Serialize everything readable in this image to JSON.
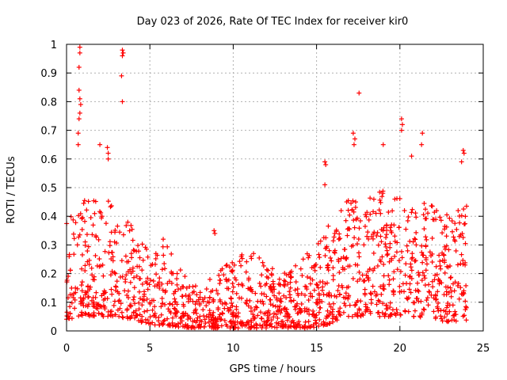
{
  "chart_data": {
    "type": "scatter",
    "title": "Day 023 of 2026, Rate Of TEC Index for receiver kir0",
    "xlabel": "GPS time / hours",
    "ylabel": "ROTI / TECUs",
    "xlim": [
      0,
      25
    ],
    "ylim": [
      0,
      1
    ],
    "x_ticks": [
      "0",
      "5",
      "10",
      "15",
      "20",
      "25"
    ],
    "y_ticks": [
      "0",
      "0.1",
      "0.2",
      "0.3",
      "0.4",
      "0.5",
      "0.6",
      "0.7",
      "0.8",
      "0.9",
      "1"
    ],
    "grid": true,
    "marker": "plus",
    "color": "#ff0000",
    "notable_points": [
      {
        "x": 0.8,
        "y": 0.99
      },
      {
        "x": 0.8,
        "y": 0.97
      },
      {
        "x": 0.75,
        "y": 0.92
      },
      {
        "x": 0.75,
        "y": 0.84
      },
      {
        "x": 0.8,
        "y": 0.81
      },
      {
        "x": 0.85,
        "y": 0.79
      },
      {
        "x": 0.8,
        "y": 0.76
      },
      {
        "x": 0.75,
        "y": 0.74
      },
      {
        "x": 0.7,
        "y": 0.69
      },
      {
        "x": 0.7,
        "y": 0.65
      },
      {
        "x": 3.35,
        "y": 0.98
      },
      {
        "x": 3.4,
        "y": 0.97
      },
      {
        "x": 3.35,
        "y": 0.96
      },
      {
        "x": 3.3,
        "y": 0.89
      },
      {
        "x": 3.35,
        "y": 0.8
      },
      {
        "x": 2.45,
        "y": 0.64
      },
      {
        "x": 2.5,
        "y": 0.62
      },
      {
        "x": 2.0,
        "y": 0.65
      },
      {
        "x": 2.5,
        "y": 0.6
      },
      {
        "x": 8.85,
        "y": 0.35
      },
      {
        "x": 8.9,
        "y": 0.34
      },
      {
        "x": 5.8,
        "y": 0.32
      },
      {
        "x": 17.55,
        "y": 0.83
      },
      {
        "x": 17.2,
        "y": 0.69
      },
      {
        "x": 17.3,
        "y": 0.67
      },
      {
        "x": 17.25,
        "y": 0.65
      },
      {
        "x": 20.1,
        "y": 0.74
      },
      {
        "x": 20.15,
        "y": 0.72
      },
      {
        "x": 20.1,
        "y": 0.7
      },
      {
        "x": 21.35,
        "y": 0.69
      },
      {
        "x": 21.3,
        "y": 0.65
      },
      {
        "x": 19.0,
        "y": 0.65
      },
      {
        "x": 20.7,
        "y": 0.61
      },
      {
        "x": 23.8,
        "y": 0.63
      },
      {
        "x": 23.85,
        "y": 0.62
      },
      {
        "x": 23.7,
        "y": 0.59
      },
      {
        "x": 15.5,
        "y": 0.59
      },
      {
        "x": 15.55,
        "y": 0.58
      },
      {
        "x": 15.5,
        "y": 0.51
      }
    ],
    "density_envelope": {
      "description_hours": [
        0,
        1,
        2,
        3,
        4,
        5,
        6,
        7,
        8,
        9,
        10,
        11,
        12,
        13,
        14,
        15,
        16,
        17,
        18,
        19,
        20,
        21,
        22,
        23,
        24
      ],
      "typical_max": [
        0.4,
        0.48,
        0.45,
        0.5,
        0.35,
        0.28,
        0.3,
        0.2,
        0.15,
        0.2,
        0.25,
        0.28,
        0.25,
        0.2,
        0.25,
        0.3,
        0.4,
        0.5,
        0.48,
        0.5,
        0.5,
        0.45,
        0.45,
        0.4,
        0.45
      ],
      "typical_min": [
        0.04,
        0.05,
        0.05,
        0.05,
        0.04,
        0.02,
        0.02,
        0.01,
        0.01,
        0.01,
        0.01,
        0.01,
        0.01,
        0.01,
        0.01,
        0.01,
        0.03,
        0.05,
        0.05,
        0.05,
        0.05,
        0.05,
        0.04,
        0.03,
        0.03
      ]
    }
  }
}
